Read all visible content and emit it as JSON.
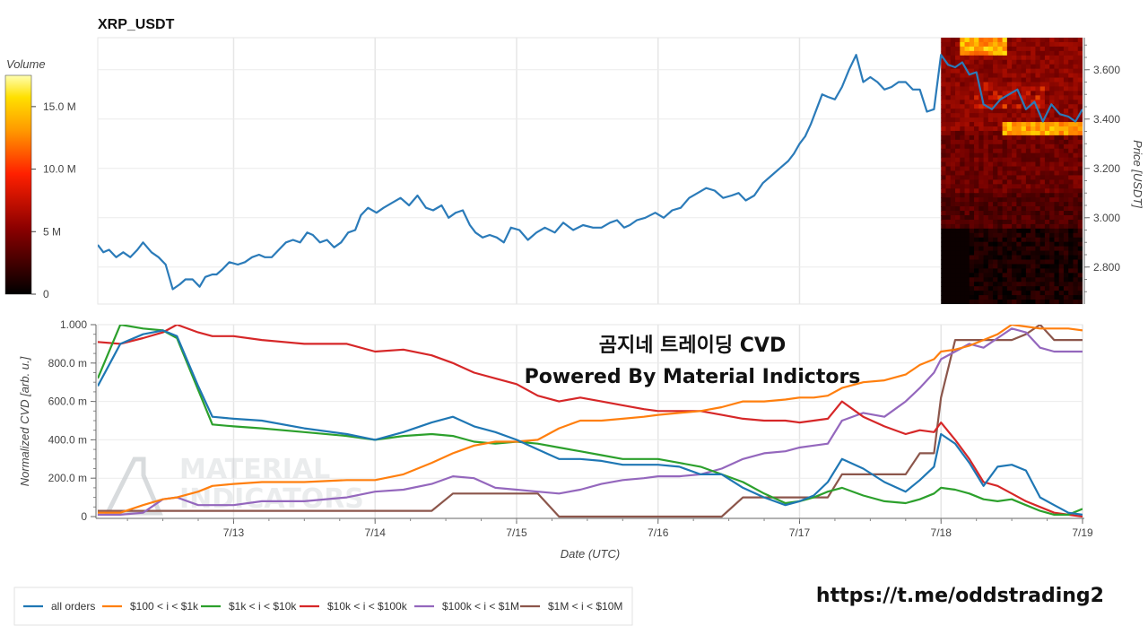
{
  "title": "XRP_USDT",
  "colorbar": {
    "label": "Volume",
    "ticks": [
      "0",
      "5 M",
      "10.0 M",
      "15.0 M"
    ],
    "tick_values": [
      0,
      5,
      10,
      15
    ],
    "max": 17.5
  },
  "price_axis": {
    "label": "Price [USDT]",
    "ticks": [
      "2.800",
      "3.000",
      "3.200",
      "3.400",
      "3.600"
    ],
    "tick_values": [
      2.8,
      3.0,
      3.2,
      3.4,
      3.6
    ],
    "ylim": [
      2.65,
      3.73
    ]
  },
  "cvd_axis": {
    "label": "Normalized CVD [arb. u.]",
    "ticks": [
      "0",
      "200.0 m",
      "400.0 m",
      "600.0 m",
      "800.0 m",
      "1.000"
    ],
    "tick_values": [
      0,
      0.2,
      0.4,
      0.6,
      0.8,
      1.0
    ],
    "ylim": [
      0,
      1.0
    ]
  },
  "x_axis": {
    "label": "Date (UTC)",
    "ticks": [
      "7/13",
      "7/14",
      "7/15",
      "7/16",
      "7/17",
      "7/18",
      "7/19"
    ],
    "tick_values": [
      13,
      14,
      15,
      16,
      17,
      18,
      19
    ],
    "xlim": [
      12.04,
      19.0
    ]
  },
  "overlay": {
    "line1": "곰지네 트레이딩 CVD",
    "line2": "Powered By Material Indictors"
  },
  "watermark": {
    "line1": "MATERIAL",
    "line2": "INDICATORS"
  },
  "footer_url": "https://t.me/oddstrading2",
  "colors": {
    "price": "#2b7bb9",
    "all_orders": "#1f77b4",
    "s100_1k": "#ff7f0e",
    "s1k_10k": "#2ca02c",
    "s10k_100k": "#d62728",
    "s100k_1m": "#9467bd",
    "s1m_10m": "#8c564b"
  },
  "heatmap": {
    "x_start": 18.0,
    "x_end": 19.0,
    "note": ""
  },
  "chart_data": [
    {
      "type": "line",
      "title": "XRP_USDT",
      "xlabel": "",
      "ylabel": "Price [USDT]",
      "ylim": [
        2.65,
        3.73
      ],
      "series": [
        {
          "values_x": [
            12.04,
            12.08,
            12.12,
            12.17,
            12.22,
            12.27,
            12.32,
            12.36,
            12.42,
            12.47,
            12.52,
            12.57,
            12.62,
            12.66,
            12.71,
            12.76,
            12.8,
            12.85,
            12.88,
            12.92,
            12.97,
            13.03,
            13.08,
            13.13,
            13.18,
            13.22,
            13.27,
            13.32,
            13.37,
            13.42,
            13.47,
            13.52,
            13.56,
            13.61,
            13.66,
            13.71,
            13.76,
            13.81,
            13.86,
            13.9,
            13.95,
            14.01,
            14.06,
            14.12,
            14.18,
            14.24,
            14.3,
            14.36,
            14.41,
            14.47,
            14.52,
            14.57,
            14.62,
            14.67,
            14.71,
            14.76,
            14.81,
            14.86,
            14.91,
            14.96,
            15.02,
            15.08,
            15.14,
            15.2,
            15.27,
            15.33,
            15.4,
            15.47,
            15.54,
            15.6,
            15.66,
            15.71,
            15.76,
            15.8,
            15.85,
            15.91,
            15.98,
            16.04,
            16.1,
            16.16,
            16.22,
            16.28,
            16.34,
            16.4,
            16.46,
            16.52,
            16.57,
            16.62,
            16.68,
            16.74,
            16.8,
            16.86,
            16.92,
            16.96,
            17.0,
            17.04,
            17.08,
            17.12,
            17.16,
            17.2,
            17.25,
            17.3,
            17.35,
            17.4,
            17.45,
            17.5,
            17.55,
            17.6,
            17.65,
            17.7,
            17.75,
            17.8,
            17.85,
            17.9,
            17.95,
            18.0,
            18.05,
            18.1,
            18.15,
            18.2,
            18.25,
            18.3,
            18.36,
            18.42,
            18.48,
            18.54,
            18.6,
            18.66,
            18.72,
            18.78,
            18.84,
            18.9,
            18.95,
            19.0
          ],
          "values": [
            2.89,
            2.86,
            2.87,
            2.84,
            2.86,
            2.84,
            2.87,
            2.9,
            2.86,
            2.84,
            2.81,
            2.71,
            2.73,
            2.75,
            2.75,
            2.72,
            2.76,
            2.77,
            2.77,
            2.79,
            2.82,
            2.81,
            2.82,
            2.84,
            2.85,
            2.84,
            2.84,
            2.87,
            2.9,
            2.91,
            2.9,
            2.94,
            2.93,
            2.9,
            2.91,
            2.88,
            2.9,
            2.94,
            2.95,
            3.01,
            3.04,
            3.02,
            3.04,
            3.06,
            3.08,
            3.05,
            3.09,
            3.04,
            3.03,
            3.05,
            3.0,
            3.02,
            3.03,
            2.97,
            2.94,
            2.92,
            2.93,
            2.92,
            2.9,
            2.96,
            2.95,
            2.91,
            2.94,
            2.96,
            2.94,
            2.98,
            2.95,
            2.97,
            2.96,
            2.96,
            2.98,
            2.99,
            2.96,
            2.97,
            2.99,
            3.0,
            3.02,
            3.0,
            3.03,
            3.04,
            3.08,
            3.1,
            3.12,
            3.11,
            3.08,
            3.09,
            3.1,
            3.07,
            3.09,
            3.14,
            3.17,
            3.2,
            3.23,
            3.26,
            3.3,
            3.33,
            3.38,
            3.44,
            3.5,
            3.49,
            3.48,
            3.53,
            3.6,
            3.66,
            3.55,
            3.57,
            3.55,
            3.52,
            3.53,
            3.55,
            3.55,
            3.52,
            3.52,
            3.43,
            3.44,
            3.66,
            3.62,
            3.61,
            3.63,
            3.58,
            3.59,
            3.46,
            3.44,
            3.48,
            3.5,
            3.52,
            3.44,
            3.47,
            3.39,
            3.46,
            3.42,
            3.41,
            3.39,
            3.44
          ]
        }
      ]
    },
    {
      "type": "line",
      "title": "",
      "xlabel": "Date (UTC)",
      "ylabel": "Normalized CVD [arb. u.]",
      "ylim": [
        0,
        1.0
      ],
      "x": [
        12.04,
        12.2,
        12.36,
        12.5,
        12.6,
        12.75,
        12.85,
        13.0,
        13.2,
        13.5,
        13.8,
        14.0,
        14.2,
        14.4,
        14.55,
        14.7,
        14.85,
        15.0,
        15.15,
        15.3,
        15.45,
        15.6,
        15.75,
        15.9,
        16.0,
        16.15,
        16.3,
        16.45,
        16.6,
        16.75,
        16.9,
        17.0,
        17.1,
        17.2,
        17.3,
        17.45,
        17.6,
        17.75,
        17.85,
        17.95,
        18.0,
        18.1,
        18.2,
        18.3,
        18.4,
        18.5,
        18.6,
        18.7,
        18.8,
        18.9,
        19.0
      ],
      "series": [
        {
          "name": "all orders",
          "values": [
            0.68,
            0.9,
            0.95,
            0.97,
            0.94,
            0.68,
            0.52,
            0.51,
            0.5,
            0.46,
            0.43,
            0.4,
            0.44,
            0.49,
            0.52,
            0.47,
            0.44,
            0.4,
            0.35,
            0.3,
            0.3,
            0.29,
            0.27,
            0.27,
            0.27,
            0.26,
            0.22,
            0.22,
            0.15,
            0.1,
            0.06,
            0.08,
            0.11,
            0.18,
            0.3,
            0.25,
            0.18,
            0.13,
            0.19,
            0.26,
            0.43,
            0.38,
            0.28,
            0.16,
            0.26,
            0.27,
            0.24,
            0.1,
            0.06,
            0.02,
            0.01
          ]
        },
        {
          "name": "$100 < i < $1k",
          "values": [
            0.02,
            0.02,
            0.06,
            0.09,
            0.1,
            0.13,
            0.16,
            0.17,
            0.18,
            0.18,
            0.19,
            0.19,
            0.22,
            0.28,
            0.33,
            0.37,
            0.39,
            0.39,
            0.4,
            0.46,
            0.5,
            0.5,
            0.51,
            0.52,
            0.53,
            0.54,
            0.55,
            0.57,
            0.6,
            0.6,
            0.61,
            0.62,
            0.62,
            0.63,
            0.67,
            0.7,
            0.71,
            0.74,
            0.79,
            0.82,
            0.86,
            0.87,
            0.89,
            0.92,
            0.95,
            1.0,
            0.99,
            0.98,
            0.98,
            0.98,
            0.97
          ]
        },
        {
          "name": "$1k < i < $10k",
          "values": [
            0.72,
            1.0,
            0.98,
            0.97,
            0.93,
            0.66,
            0.48,
            0.47,
            0.46,
            0.44,
            0.42,
            0.4,
            0.42,
            0.43,
            0.42,
            0.39,
            0.38,
            0.39,
            0.38,
            0.36,
            0.34,
            0.32,
            0.3,
            0.3,
            0.3,
            0.28,
            0.26,
            0.22,
            0.18,
            0.12,
            0.07,
            0.08,
            0.1,
            0.13,
            0.15,
            0.11,
            0.08,
            0.07,
            0.09,
            0.12,
            0.15,
            0.14,
            0.12,
            0.09,
            0.08,
            0.09,
            0.06,
            0.03,
            0.01,
            0.01,
            0.04
          ]
        },
        {
          "name": "$10k < i < $100k",
          "values": [
            0.91,
            0.9,
            0.93,
            0.96,
            1.0,
            0.96,
            0.94,
            0.94,
            0.92,
            0.9,
            0.9,
            0.86,
            0.87,
            0.84,
            0.8,
            0.75,
            0.72,
            0.69,
            0.63,
            0.6,
            0.62,
            0.6,
            0.58,
            0.56,
            0.55,
            0.55,
            0.55,
            0.53,
            0.51,
            0.5,
            0.5,
            0.49,
            0.5,
            0.51,
            0.6,
            0.52,
            0.47,
            0.43,
            0.45,
            0.44,
            0.49,
            0.4,
            0.3,
            0.18,
            0.16,
            0.12,
            0.08,
            0.05,
            0.02,
            0.01,
            0.0
          ]
        },
        {
          "name": "$100k < i < $1M",
          "values": [
            0.01,
            0.01,
            0.02,
            0.09,
            0.1,
            0.06,
            0.06,
            0.06,
            0.08,
            0.08,
            0.1,
            0.13,
            0.14,
            0.17,
            0.21,
            0.2,
            0.15,
            0.14,
            0.13,
            0.12,
            0.14,
            0.17,
            0.19,
            0.2,
            0.21,
            0.21,
            0.22,
            0.25,
            0.3,
            0.33,
            0.34,
            0.36,
            0.37,
            0.38,
            0.5,
            0.54,
            0.52,
            0.6,
            0.67,
            0.75,
            0.82,
            0.86,
            0.9,
            0.88,
            0.93,
            0.98,
            0.96,
            0.88,
            0.86,
            0.86,
            0.86
          ]
        },
        {
          "name": "$1M < i < $10M",
          "values": [
            0.03,
            0.03,
            0.03,
            0.03,
            0.03,
            0.03,
            0.03,
            0.03,
            0.03,
            0.03,
            0.03,
            0.03,
            0.03,
            0.03,
            0.12,
            0.12,
            0.12,
            0.12,
            0.12,
            0.0,
            0.0,
            0.0,
            0.0,
            0.0,
            0.0,
            0.0,
            0.0,
            0.0,
            0.1,
            0.1,
            0.1,
            0.1,
            0.1,
            0.1,
            0.22,
            0.22,
            0.22,
            0.22,
            0.33,
            0.33,
            0.62,
            0.92,
            0.92,
            0.92,
            0.92,
            0.92,
            0.95,
            1.0,
            0.92,
            0.92,
            0.92
          ]
        }
      ]
    }
  ],
  "legend": [
    {
      "label": "all orders",
      "color_key": "all_orders"
    },
    {
      "label": "$100 < i < $1k",
      "color_key": "s100_1k"
    },
    {
      "label": "$1k < i < $10k",
      "color_key": "s1k_10k"
    },
    {
      "label": "$10k < i < $100k",
      "color_key": "s10k_100k"
    },
    {
      "label": "$100k < i < $1M",
      "color_key": "s100k_1m"
    },
    {
      "label": "$1M < i < $10M",
      "color_key": "s1m_10m"
    }
  ]
}
